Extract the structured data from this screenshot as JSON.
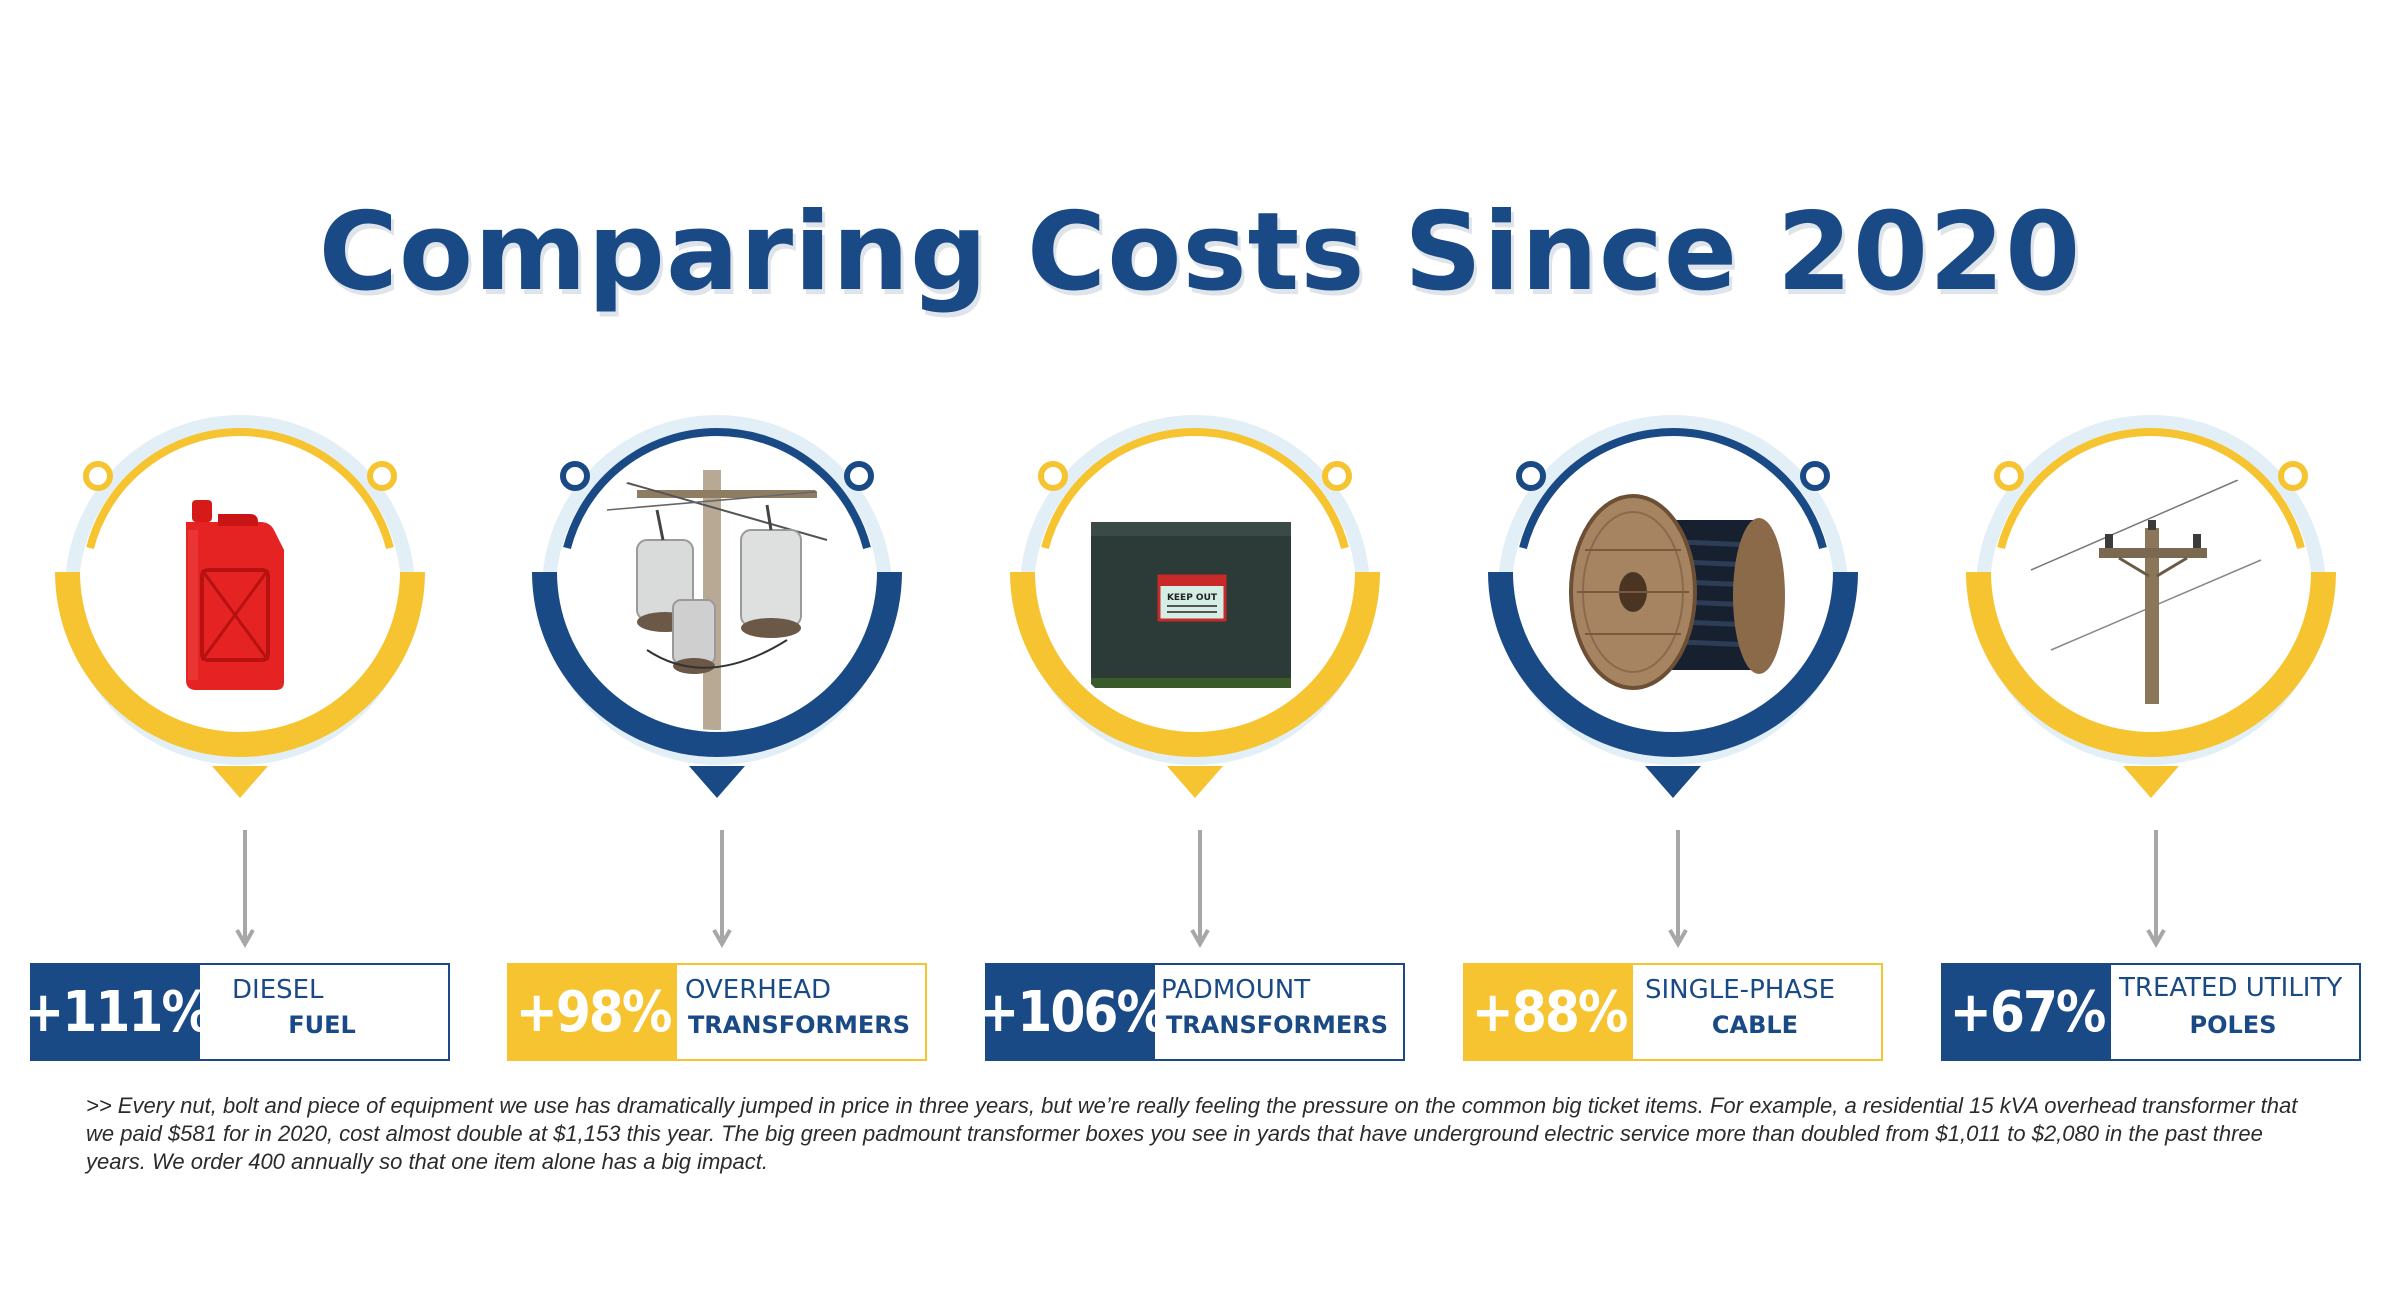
{
  "title": "Comparing Costs Since 2020",
  "colors": {
    "navy": "#1a4a85",
    "gold": "#f6c430",
    "ring_glow": "#e3eff6",
    "arrow": "#a7a7a7"
  },
  "items": [
    {
      "percent": "+111%",
      "name_line1": "DIESEL",
      "name_line2": "FUEL",
      "theme": "gold-ring-navy-box",
      "icon": "fuel-can-icon"
    },
    {
      "percent": "+98%",
      "name_line1": "OVERHEAD",
      "name_line2": "TRANSFORMERS",
      "theme": "navy-ring-gold-box",
      "icon": "overhead-transformer-icon"
    },
    {
      "percent": "+106%",
      "name_line1": "PADMOUNT",
      "name_line2": "TRANSFORMERS",
      "theme": "gold-ring-navy-box",
      "icon": "padmount-transformer-icon"
    },
    {
      "percent": "+88%",
      "name_line1": "SINGLE-PHASE",
      "name_line2": "CABLE",
      "theme": "navy-ring-gold-box",
      "icon": "cable-spool-icon"
    },
    {
      "percent": "+67%",
      "name_line1": "TREATED UTILITY",
      "name_line2": "POLES",
      "theme": "gold-ring-navy-box",
      "icon": "utility-pole-icon"
    }
  ],
  "padmount_sign": "KEEP OUT",
  "footnote": ">> Every nut, bolt and piece of equipment we use has dramatically jumped in price in three years, but we’re really feeling the pressure on the common big ticket items. For example, a residential 15 kVA overhead transformer that we paid $581 for in 2020, cost almost double at $1,153 this year. The big green padmount transformer boxes you see in yards that have underground electric service more than doubled from $1,011 to $2,080 in the past three years. We order 400 annually so that one item alone has a big impact."
}
